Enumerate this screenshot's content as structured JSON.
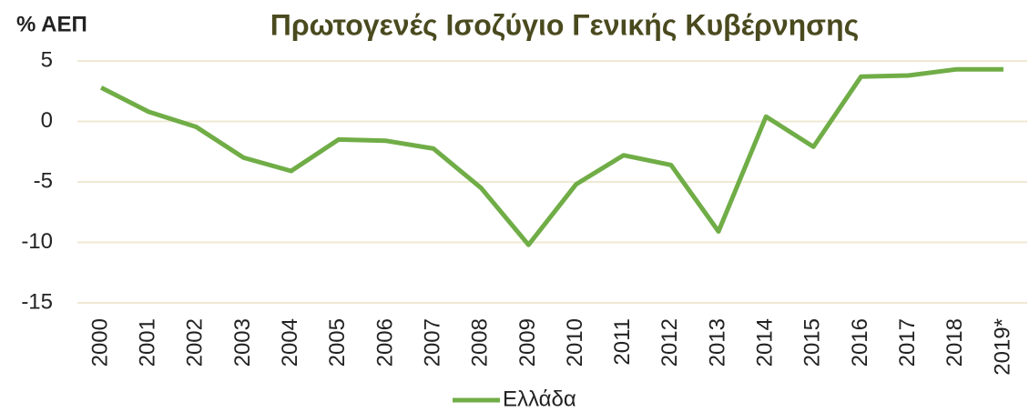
{
  "chart_data": {
    "type": "line",
    "title": "Πρωτογενές Ισοζύγιο Γενικής Κυβέρνησης",
    "y_axis_label": "% ΑΕΠ",
    "categories": [
      "2000",
      "2001",
      "2002",
      "2003",
      "2004",
      "2005",
      "2006",
      "2007",
      "2008",
      "2009",
      "2010",
      "2011",
      "2012",
      "2013",
      "2014",
      "2015",
      "2016",
      "2017",
      "2018",
      "2019*"
    ],
    "series": [
      {
        "name": "Ελλάδα",
        "color": "#70ad47",
        "values": [
          2.8,
          0.8,
          -0.45,
          -3.0,
          -4.1,
          -1.5,
          -1.6,
          -2.25,
          -5.5,
          -10.2,
          -5.2,
          -2.8,
          -3.6,
          -9.1,
          0.4,
          -2.1,
          3.7,
          3.8,
          4.3,
          4.3
        ]
      }
    ],
    "ylim": [
      -15,
      5
    ],
    "yticks": [
      -15,
      -10,
      -5,
      0,
      5
    ],
    "grid": true,
    "legend": "bottom"
  }
}
